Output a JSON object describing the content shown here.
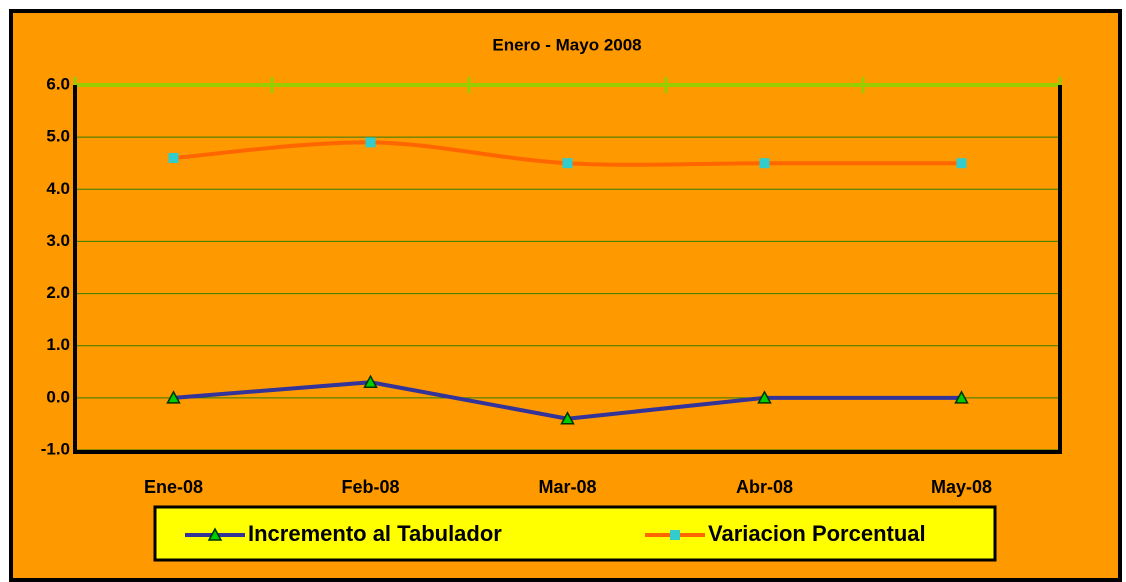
{
  "chart_data": {
    "type": "line",
    "title": "Enero - Mayo 2008",
    "categories": [
      "Ene-08",
      "Feb-08",
      "Mar-08",
      "Abr-08",
      "May-08"
    ],
    "series": [
      {
        "name": "Incremento al Tabulador",
        "color": "#333399",
        "marker_color": "#00CC00",
        "values": [
          0,
          0.3,
          -0.4,
          0,
          0
        ]
      },
      {
        "name": "Variacion Porcentual",
        "color": "#FF6600",
        "marker_color": "#33CCCC",
        "values": [
          4.6,
          4.9,
          4.5,
          4.5,
          4.5
        ]
      }
    ],
    "ylim": [
      -1,
      6
    ],
    "yticks": [
      {
        "value": -1,
        "label": "-1.0"
      },
      {
        "value": 0,
        "label": "0.0"
      },
      {
        "value": 1,
        "label": "1.0"
      },
      {
        "value": 2,
        "label": "2.0"
      },
      {
        "value": 3,
        "label": "3.0"
      },
      {
        "value": 4,
        "label": "4.0"
      },
      {
        "value": 5,
        "label": "5.0"
      },
      {
        "value": 6,
        "label": "6.0"
      }
    ],
    "grid": true,
    "legend": "bottom"
  }
}
